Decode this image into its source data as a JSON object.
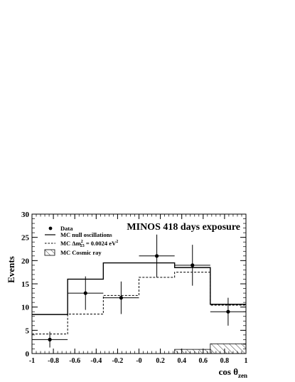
{
  "chart_data": {
    "type": "histogram",
    "title": "MINOS 418 days exposure",
    "xlabel": "cos θ",
    "xlabel_sub": "zen",
    "ylabel": "Events",
    "xlim": [
      -1,
      1
    ],
    "ylim": [
      0,
      30
    ],
    "x_ticks": [
      -1,
      -0.8,
      -0.6,
      -0.4,
      -0.2,
      0,
      0.2,
      0.4,
      0.6,
      0.8,
      1
    ],
    "x_tick_labels": [
      "-1",
      "-0.8",
      "-0.6",
      "-0.4",
      "-0.2",
      "-0",
      "0.2",
      "0.4",
      "0.6",
      "0.8",
      "1"
    ],
    "y_ticks": [
      0,
      5,
      10,
      15,
      20,
      25,
      30
    ],
    "bin_edges": [
      -1.0,
      -0.6667,
      -0.3333,
      0.0,
      0.3333,
      0.6667,
      1.0
    ],
    "series": [
      {
        "name": "Data",
        "style": "points",
        "x": [
          -0.8333,
          -0.5,
          -0.1667,
          0.1667,
          0.5,
          0.8333
        ],
        "values": [
          3,
          13,
          12,
          21,
          19,
          9
        ],
        "yerr": [
          1.7,
          3.6,
          3.5,
          4.6,
          4.4,
          3.0
        ]
      },
      {
        "name": "MC null oscillations",
        "style": "solid",
        "values": [
          8.4,
          16.0,
          19.5,
          19.5,
          18.5,
          10.6
        ]
      },
      {
        "name": "MC Δm²₂₃ = 0.0024 eV²",
        "style": "dashed",
        "values": [
          4.2,
          8.5,
          12.5,
          16.4,
          17.5,
          10.4
        ]
      },
      {
        "name": "MC Cosmic ray",
        "style": "hatched",
        "values": [
          0,
          0,
          0,
          0,
          0.9,
          2.1
        ]
      }
    ],
    "legend": {
      "position": "top-left",
      "items": [
        {
          "symbol": "marker",
          "label": "Data"
        },
        {
          "symbol": "solid",
          "label": "MC null oscillations"
        },
        {
          "symbol": "dashed",
          "label_prefix": "MC Δm",
          "label_sup": "2",
          "label_sub": "23",
          "label_suffix": " = 0.0024 eV",
          "label_end_sup": "2"
        },
        {
          "symbol": "hatched",
          "label": "MC Cosmic ray"
        }
      ]
    },
    "grid": false
  }
}
